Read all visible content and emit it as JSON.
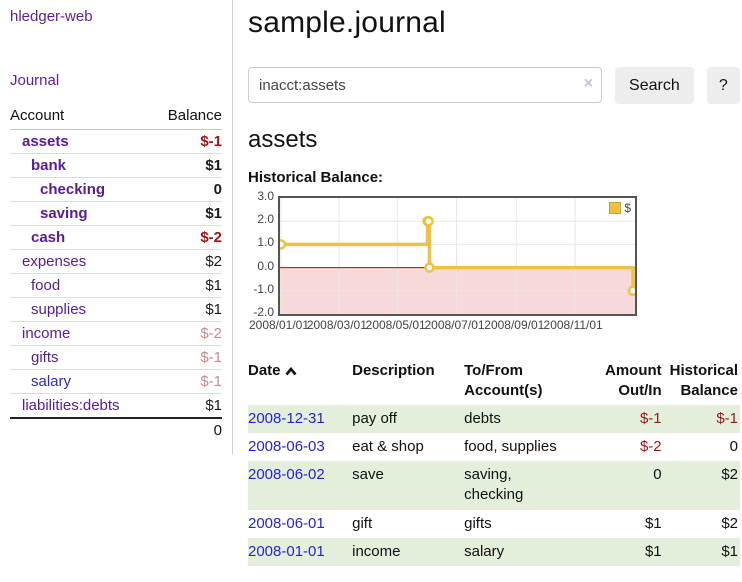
{
  "colors": {
    "link_purple": "#5a1f9e",
    "link_blue": "#2a2ad0",
    "negative_red": "#9c1515",
    "negative_muted_red": "#c28b8b",
    "row_green": "#e4efdb",
    "series_gold": "#edc240"
  },
  "sidebar": {
    "app_title": "hledger-web",
    "nav": {
      "journal": "Journal"
    },
    "accounts_table": {
      "account_header": "Account",
      "balance_header": "Balance",
      "rows": [
        {
          "name": "assets",
          "indent": 1,
          "bold": true,
          "balance": "$-1",
          "muted": false
        },
        {
          "name": "bank",
          "indent": 2,
          "bold": true,
          "balance": "$1",
          "muted": false
        },
        {
          "name": "checking",
          "indent": 3,
          "bold": true,
          "balance": "0",
          "muted": false
        },
        {
          "name": "saving",
          "indent": 3,
          "bold": true,
          "balance": "$1",
          "muted": false
        },
        {
          "name": "cash",
          "indent": 2,
          "bold": true,
          "balance": "$-2",
          "muted": false
        },
        {
          "name": "expenses",
          "indent": 1,
          "bold": false,
          "balance": "$2",
          "muted": false
        },
        {
          "name": "food",
          "indent": 2,
          "bold": false,
          "balance": "$1",
          "muted": false
        },
        {
          "name": "supplies",
          "indent": 2,
          "bold": false,
          "balance": "$1",
          "muted": false
        },
        {
          "name": "income",
          "indent": 1,
          "bold": false,
          "balance": "$-2",
          "muted": true
        },
        {
          "name": "gifts",
          "indent": 2,
          "bold": false,
          "balance": "$-1",
          "muted": true
        },
        {
          "name": "salary",
          "indent": 2,
          "bold": false,
          "balance": "$-1",
          "muted": true,
          "blue_link": true
        },
        {
          "name": "liabilities:debts",
          "indent": 1,
          "bold": false,
          "balance": "$1",
          "muted": false
        }
      ],
      "total": "0"
    }
  },
  "header": {
    "title": "sample.journal"
  },
  "search": {
    "value": "inacct:assets",
    "clear_icon": "×",
    "button_label": "Search",
    "help_label": "?"
  },
  "account_page": {
    "heading": "assets",
    "chart_label": "Historical Balance:"
  },
  "chart_data": {
    "type": "line",
    "step": true,
    "grid": true,
    "title": "Historical Balance",
    "legend_position": "top-right",
    "series": [
      {
        "name": "$",
        "color": "#edc240",
        "points": [
          [
            "2008-01-01",
            1
          ],
          [
            "2008-06-01",
            2
          ],
          [
            "2008-06-02",
            2
          ],
          [
            "2008-06-03",
            0
          ],
          [
            "2008-12-31",
            -1
          ]
        ]
      }
    ],
    "x_range": [
      "2008-01-01",
      "2008-12-31"
    ],
    "ylim": [
      -2,
      3
    ],
    "x_ticks": [
      "2008/01/01",
      "2008/03/01",
      "2008/05/01",
      "2008/07/01",
      "2008/09/01",
      "2008/11/01"
    ],
    "y_ticks": [
      "3.0",
      "2.0",
      "1.0",
      "0.0",
      "-1.0",
      "-2.0"
    ],
    "negative_region_color": "#f8d9d9",
    "zero_line_color": "#8f1515",
    "gridline_color": "#e8e8e8"
  },
  "register_table": {
    "headers": {
      "date": "Date",
      "description": "Description",
      "to_from": "To/From Account(s)",
      "amount": "Amount Out/In",
      "balance": "Historical Balance"
    },
    "rows": [
      {
        "date": "2008-12-31",
        "description": "pay off",
        "to_from": "debts",
        "amount": "$-1",
        "balance": "$-1"
      },
      {
        "date": "2008-06-03",
        "description": "eat & shop",
        "to_from": "food, supplies",
        "amount": "$-2",
        "balance": "0"
      },
      {
        "date": "2008-06-02",
        "description": "save",
        "to_from": "saving, checking",
        "amount": "0",
        "balance": "$2"
      },
      {
        "date": "2008-06-01",
        "description": "gift",
        "to_from": "gifts",
        "amount": "$1",
        "balance": "$2"
      },
      {
        "date": "2008-01-01",
        "description": "income",
        "to_from": "salary",
        "amount": "$1",
        "balance": "$1"
      }
    ]
  }
}
